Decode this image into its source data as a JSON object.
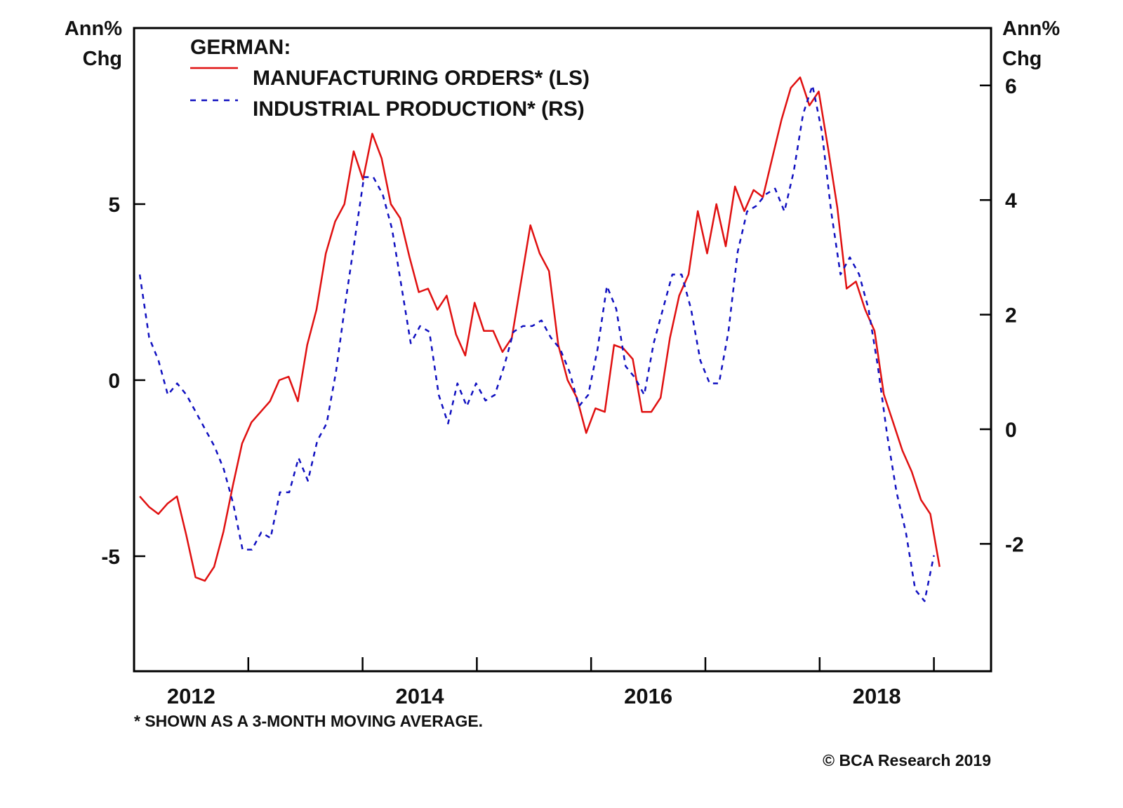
{
  "chart_data": {
    "type": "line",
    "title": "GERMAN:",
    "left_axis": {
      "label_line1": "Ann%",
      "label_line2": "Chg",
      "range": [
        -7.6,
        10.0
      ],
      "ticks": [
        5,
        0,
        -5
      ],
      "tick_labels": [
        "5",
        "0",
        "-5"
      ]
    },
    "right_axis": {
      "label_line1": "Ann%",
      "label_line2": "Chg",
      "range": [
        -3.9,
        7.0
      ],
      "ticks": [
        6,
        4,
        2,
        0,
        -2
      ],
      "tick_labels": [
        "6",
        "4",
        "2",
        "0",
        "-2"
      ]
    },
    "x_axis": {
      "range": [
        2012.0,
        2019.45
      ],
      "ticks": [
        2013,
        2014,
        2015,
        2016,
        2017,
        2018,
        2019
      ],
      "labels": [
        {
          "text": "2012",
          "at": 2012.5
        },
        {
          "text": "2014",
          "at": 2014.5
        },
        {
          "text": "2016",
          "at": 2016.5
        },
        {
          "text": "2018",
          "at": 2018.5
        }
      ]
    },
    "grid": false,
    "legend_position": "top-left",
    "series": [
      {
        "name": "MANUFACTURING ORDERS* (LS)",
        "axis": "left",
        "color": "#e01010",
        "style": "solid",
        "x_start": 2012.05,
        "x_end": 2019.05,
        "values": [
          -3.3,
          -3.6,
          -3.8,
          -3.5,
          -3.3,
          -4.4,
          -5.6,
          -5.7,
          -5.3,
          -4.3,
          -3.0,
          -1.8,
          -1.2,
          -0.9,
          -0.6,
          0.0,
          0.1,
          -0.6,
          1.0,
          2.0,
          3.6,
          4.5,
          5.0,
          6.5,
          5.7,
          7.0,
          6.3,
          5.0,
          4.6,
          3.5,
          2.5,
          2.6,
          2.0,
          2.4,
          1.3,
          0.7,
          2.2,
          1.4,
          1.4,
          0.8,
          1.2,
          2.8,
          4.4,
          3.6,
          3.1,
          1.0,
          0.0,
          -0.5,
          -1.5,
          -0.8,
          -0.9,
          1.0,
          0.9,
          0.6,
          -0.9,
          -0.9,
          -0.5,
          1.2,
          2.4,
          3.0,
          4.8,
          3.6,
          5.0,
          3.8,
          5.5,
          4.8,
          5.4,
          5.2,
          6.3,
          7.4,
          8.3,
          8.6,
          7.8,
          8.2,
          6.6,
          4.9,
          2.6,
          2.8,
          2.0,
          1.4,
          -0.4,
          -1.2,
          -2.0,
          -2.6,
          -3.4,
          -3.8,
          -5.3
        ]
      },
      {
        "name": "INDUSTRIAL PRODUCTION* (RS)",
        "axis": "right",
        "color": "#1010c0",
        "style": "dashed",
        "x_start": 2012.05,
        "x_end": 2019.0,
        "values": [
          2.7,
          1.6,
          1.2,
          0.6,
          0.8,
          0.6,
          0.3,
          0.0,
          -0.3,
          -0.7,
          -1.3,
          -2.1,
          -2.1,
          -1.8,
          -1.9,
          -1.1,
          -1.1,
          -0.5,
          -0.9,
          -0.2,
          0.1,
          1.0,
          2.2,
          3.3,
          4.4,
          4.4,
          4.1,
          3.5,
          2.5,
          1.5,
          1.8,
          1.7,
          0.6,
          0.1,
          0.8,
          0.4,
          0.8,
          0.5,
          0.6,
          1.1,
          1.7,
          1.8,
          1.8,
          1.9,
          1.6,
          1.4,
          1.0,
          0.4,
          0.6,
          1.4,
          2.5,
          2.1,
          1.1,
          0.9,
          0.6,
          1.5,
          2.1,
          2.7,
          2.7,
          2.1,
          1.2,
          0.8,
          0.8,
          1.7,
          3.1,
          3.8,
          3.9,
          4.1,
          4.2,
          3.8,
          4.5,
          5.5,
          6.0,
          5.2,
          3.8,
          2.7,
          3.0,
          2.7,
          2.1,
          1.1,
          -0.1,
          -1.1,
          -1.8,
          -2.8,
          -3.0,
          -2.2
        ]
      }
    ],
    "legend": {
      "title": "GERMAN:",
      "entries": [
        "MANUFACTURING ORDERS* (LS)",
        "INDUSTRIAL PRODUCTION* (RS)"
      ]
    },
    "footnote": "* SHOWN AS A 3-MONTH MOVING AVERAGE.",
    "source": "© BCA Research 2019"
  }
}
